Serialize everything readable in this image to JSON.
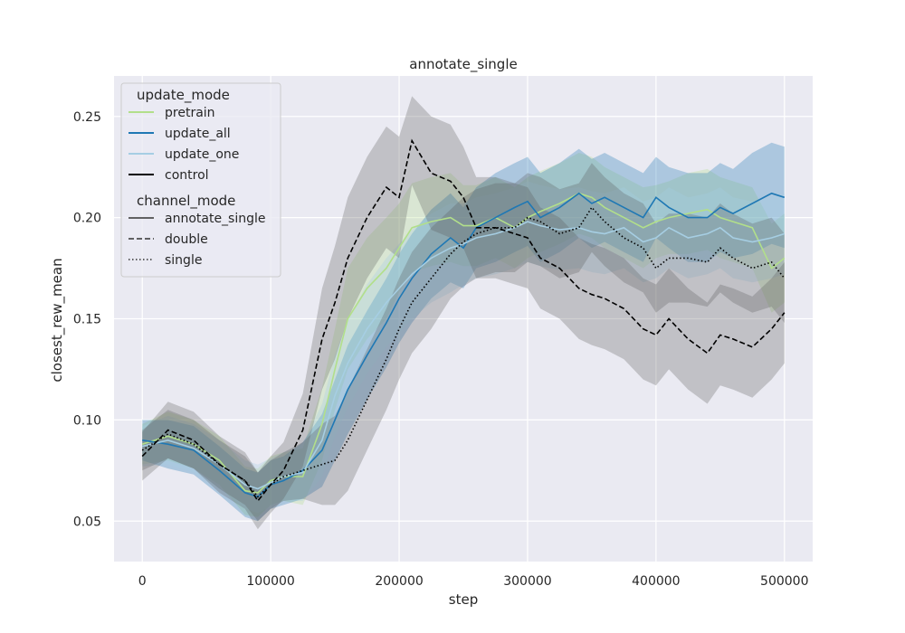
{
  "chart_data": {
    "type": "line",
    "title": "annotate_single",
    "xlabel": "step",
    "ylabel": "closest_rew_mean",
    "xlim": [
      -22000,
      522000
    ],
    "ylim": [
      0.03,
      0.27
    ],
    "xticks": [
      0,
      100000,
      200000,
      300000,
      400000,
      500000
    ],
    "yticks": [
      0.05,
      0.1,
      0.15,
      0.2,
      0.25
    ],
    "ytick_labels": [
      "0.05",
      "0.10",
      "0.15",
      "0.20",
      "0.25"
    ],
    "grid": true,
    "background": "#eaeaf2",
    "legend": {
      "placement": "upper-left",
      "hue_title": "update_mode",
      "hue_entries": [
        {
          "label": "pretrain",
          "color": "#b2df8a"
        },
        {
          "label": "update_all",
          "color": "#1f78b4"
        },
        {
          "label": "update_one",
          "color": "#a6cee3"
        },
        {
          "label": "control",
          "color": "#000000"
        }
      ],
      "style_title": "channel_mode",
      "style_entries": [
        {
          "label": "annotate_single",
          "dash": "solid"
        },
        {
          "label": "double",
          "dash": "dashed"
        },
        {
          "label": "single",
          "dash": "dotted"
        }
      ]
    },
    "x": [
      0,
      20000,
      40000,
      60000,
      80000,
      90000,
      100000,
      110000,
      125000,
      140000,
      150000,
      160000,
      175000,
      190000,
      200000,
      210000,
      225000,
      240000,
      250000,
      260000,
      275000,
      290000,
      300000,
      310000,
      325000,
      340000,
      350000,
      360000,
      375000,
      390000,
      400000,
      410000,
      425000,
      440000,
      450000,
      460000,
      475000,
      490000,
      500000
    ],
    "series": [
      {
        "update_mode": "pretrain",
        "channel_mode": "annotate_single",
        "color": "#b2df8a",
        "dash": "solid",
        "values": [
          0.088,
          0.092,
          0.088,
          0.08,
          0.065,
          0.064,
          0.07,
          0.072,
          0.072,
          0.098,
          0.125,
          0.15,
          0.165,
          0.175,
          0.185,
          0.195,
          0.198,
          0.2,
          0.196,
          0.196,
          0.2,
          0.195,
          0.2,
          0.203,
          0.207,
          0.212,
          0.21,
          0.205,
          0.2,
          0.195,
          0.198,
          0.2,
          0.202,
          0.204,
          0.2,
          0.198,
          0.195,
          0.175,
          0.18
        ],
        "band": [
          0.01,
          0.012,
          0.012,
          0.012,
          0.012,
          0.012,
          0.012,
          0.012,
          0.014,
          0.018,
          0.02,
          0.025,
          0.025,
          0.025,
          0.022,
          0.022,
          0.022,
          0.022,
          0.02,
          0.02,
          0.02,
          0.02,
          0.02,
          0.02,
          0.02,
          0.02,
          0.02,
          0.02,
          0.02,
          0.02,
          0.018,
          0.018,
          0.02,
          0.02,
          0.02,
          0.02,
          0.02,
          0.022,
          0.022
        ]
      },
      {
        "update_mode": "update_all",
        "channel_mode": "annotate_single",
        "color": "#1f78b4",
        "dash": "solid",
        "values": [
          0.09,
          0.088,
          0.085,
          0.075,
          0.064,
          0.062,
          0.068,
          0.07,
          0.075,
          0.085,
          0.1,
          0.115,
          0.132,
          0.148,
          0.16,
          0.17,
          0.182,
          0.19,
          0.185,
          0.195,
          0.2,
          0.205,
          0.208,
          0.2,
          0.205,
          0.212,
          0.207,
          0.21,
          0.205,
          0.2,
          0.21,
          0.205,
          0.2,
          0.2,
          0.205,
          0.202,
          0.207,
          0.212,
          0.21
        ],
        "band": [
          0.01,
          0.012,
          0.012,
          0.012,
          0.012,
          0.012,
          0.012,
          0.012,
          0.014,
          0.018,
          0.02,
          0.022,
          0.022,
          0.022,
          0.022,
          0.022,
          0.022,
          0.022,
          0.02,
          0.02,
          0.022,
          0.022,
          0.022,
          0.022,
          0.022,
          0.022,
          0.022,
          0.022,
          0.022,
          0.022,
          0.02,
          0.02,
          0.022,
          0.022,
          0.022,
          0.022,
          0.025,
          0.025,
          0.025
        ]
      },
      {
        "update_mode": "update_one",
        "channel_mode": "annotate_single",
        "color": "#a6cee3",
        "dash": "solid",
        "values": [
          0.087,
          0.09,
          0.086,
          0.078,
          0.068,
          0.066,
          0.069,
          0.072,
          0.074,
          0.09,
          0.112,
          0.128,
          0.145,
          0.158,
          0.165,
          0.172,
          0.18,
          0.185,
          0.187,
          0.19,
          0.192,
          0.195,
          0.198,
          0.196,
          0.194,
          0.195,
          0.193,
          0.192,
          0.195,
          0.188,
          0.19,
          0.195,
          0.19,
          0.192,
          0.195,
          0.19,
          0.188,
          0.19,
          0.192
        ],
        "band": [
          0.01,
          0.012,
          0.012,
          0.012,
          0.012,
          0.012,
          0.012,
          0.012,
          0.014,
          0.018,
          0.02,
          0.022,
          0.022,
          0.022,
          0.022,
          0.022,
          0.022,
          0.022,
          0.02,
          0.02,
          0.02,
          0.02,
          0.02,
          0.02,
          0.02,
          0.02,
          0.02,
          0.02,
          0.02,
          0.02,
          0.02,
          0.02,
          0.02,
          0.02,
          0.02,
          0.02,
          0.02,
          0.02,
          0.02
        ]
      },
      {
        "update_mode": "control",
        "channel_mode": "double",
        "color": "#000000",
        "dash": "dashed",
        "values": [
          0.082,
          0.095,
          0.09,
          0.078,
          0.07,
          0.06,
          0.068,
          0.075,
          0.095,
          0.14,
          0.158,
          0.18,
          0.2,
          0.215,
          0.21,
          0.238,
          0.222,
          0.218,
          0.21,
          0.195,
          0.195,
          0.192,
          0.19,
          0.18,
          0.175,
          0.165,
          0.162,
          0.16,
          0.155,
          0.145,
          0.142,
          0.15,
          0.14,
          0.133,
          0.142,
          0.14,
          0.136,
          0.145,
          0.153
        ],
        "band": [
          0.012,
          0.014,
          0.014,
          0.014,
          0.014,
          0.014,
          0.014,
          0.014,
          0.018,
          0.025,
          0.028,
          0.03,
          0.03,
          0.03,
          0.03,
          0.022,
          0.028,
          0.028,
          0.025,
          0.025,
          0.025,
          0.025,
          0.025,
          0.025,
          0.025,
          0.025,
          0.025,
          0.025,
          0.025,
          0.025,
          0.025,
          0.025,
          0.025,
          0.025,
          0.025,
          0.025,
          0.025,
          0.025,
          0.025
        ]
      },
      {
        "update_mode": "control",
        "channel_mode": "single",
        "color": "#000000",
        "dash": "dotted",
        "values": [
          0.085,
          0.093,
          0.088,
          0.078,
          0.07,
          0.062,
          0.068,
          0.072,
          0.075,
          0.078,
          0.08,
          0.09,
          0.11,
          0.13,
          0.145,
          0.158,
          0.17,
          0.182,
          0.188,
          0.192,
          0.195,
          0.195,
          0.2,
          0.198,
          0.192,
          0.195,
          0.205,
          0.198,
          0.19,
          0.185,
          0.175,
          0.18,
          0.18,
          0.178,
          0.185,
          0.18,
          0.175,
          0.178,
          0.17
        ],
        "band": [
          0.01,
          0.012,
          0.012,
          0.012,
          0.012,
          0.012,
          0.012,
          0.012,
          0.014,
          0.02,
          0.022,
          0.025,
          0.025,
          0.025,
          0.025,
          0.025,
          0.025,
          0.022,
          0.022,
          0.022,
          0.022,
          0.022,
          0.022,
          0.022,
          0.022,
          0.022,
          0.022,
          0.022,
          0.022,
          0.022,
          0.022,
          0.022,
          0.022,
          0.022,
          0.022,
          0.022,
          0.022,
          0.022,
          0.022
        ]
      }
    ]
  }
}
